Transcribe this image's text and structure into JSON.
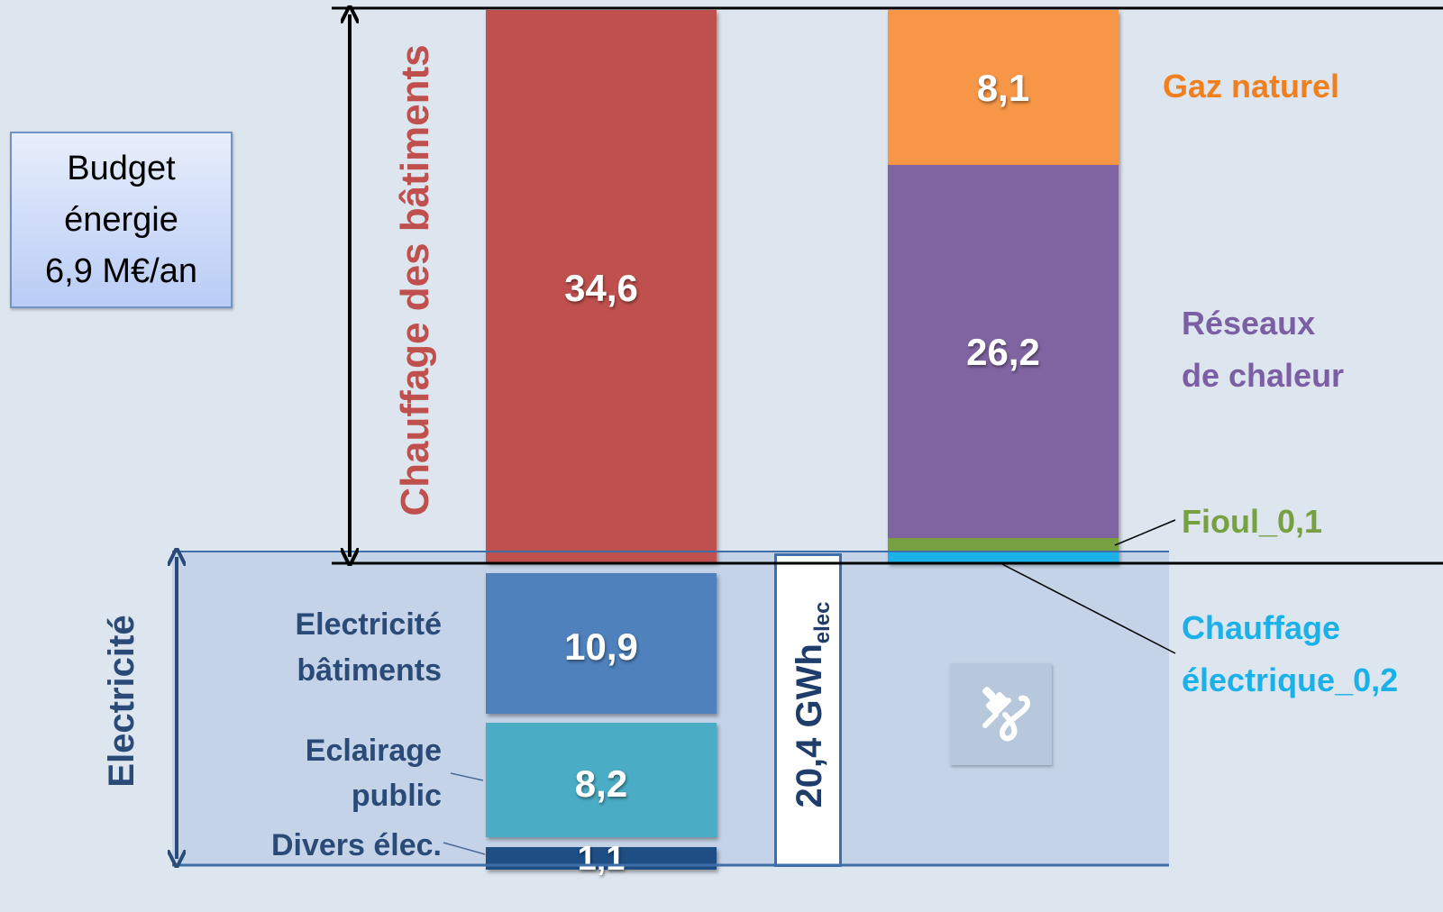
{
  "budget": {
    "line1": "Budget",
    "line2": "énergie",
    "line3": "6,9 M€/an"
  },
  "brackets": {
    "heating": "Chauffage des bâtiments",
    "electricity": "Electricité"
  },
  "annotation": {
    "gwh_main": "20,4 GWh",
    "gwh_sub": "elec"
  },
  "icons": {
    "plug": "plug-icon"
  },
  "colors": {
    "heating": "#c0504d",
    "elec_buildings": "#4f81bd",
    "public_lighting": "#4bacc6",
    "misc_elec": "#1f4e85",
    "natural_gas": "#f79646",
    "heat_networks": "#8064a2",
    "fuel_oil": "#77a041",
    "electric_heating": "#1ab0e8",
    "elec_labels": "#2a4a78",
    "heating_label": "#c0504d"
  },
  "chart_data": {
    "type": "bar",
    "title": "",
    "stacked": true,
    "unit_note": "",
    "bars": [
      {
        "segments": [
          {
            "label": "",
            "value": 34.6,
            "value_text": "34,6"
          },
          {
            "label": "Electricité bâtiments",
            "label_lines": [
              "Electricité",
              "bâtiments"
            ],
            "value": 10.9,
            "value_text": "10,9"
          },
          {
            "label": "Eclairage public",
            "label_lines": [
              "Eclairage",
              "public"
            ],
            "value": 8.2,
            "value_text": "8,2"
          },
          {
            "label": "Divers élec.",
            "label_lines": [
              "Divers élec."
            ],
            "value": 1.1,
            "value_text": "1,1"
          }
        ]
      },
      {
        "segments": [
          {
            "label": "Gaz naturel",
            "label_lines": [
              "Gaz naturel"
            ],
            "value": 8.1,
            "value_text": "8,1"
          },
          {
            "label": "Réseaux de chaleur",
            "label_lines": [
              "Réseaux",
              "de chaleur"
            ],
            "value": 26.2,
            "value_text": "26,2"
          },
          {
            "label": "Fioul_0,1",
            "label_lines": [
              "Fioul_0,1"
            ],
            "value": 0.1,
            "value_text": ""
          },
          {
            "label": "Chauffage électrique_0,2",
            "label_lines": [
              "Chauffage",
              "électrique_0,2"
            ],
            "value": 0.2,
            "value_text": ""
          }
        ]
      }
    ],
    "legend": "right",
    "grid": false
  }
}
